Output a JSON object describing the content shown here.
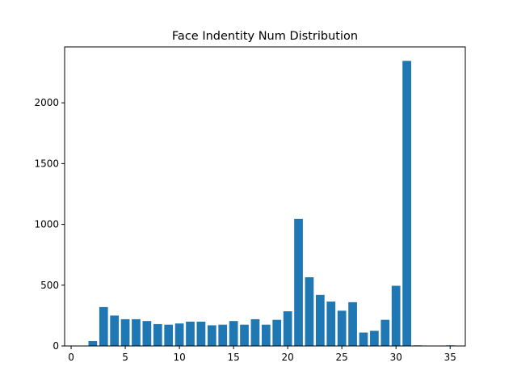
{
  "chart_data": {
    "type": "bar",
    "title": "Face Indentity Num Distribution",
    "xlabel": "",
    "ylabel": "",
    "xlim": [
      -0.6,
      36.4
    ],
    "ylim": [
      0,
      2460
    ],
    "xticks": [
      0,
      5,
      10,
      15,
      20,
      25,
      30,
      35
    ],
    "yticks": [
      0,
      500,
      1000,
      1500,
      2000
    ],
    "bar_width": 0.8,
    "color": "#1f77b4",
    "grid": false,
    "x": [
      1,
      2,
      3,
      4,
      5,
      6,
      7,
      8,
      9,
      10,
      11,
      12,
      13,
      14,
      15,
      16,
      17,
      18,
      19,
      20,
      21,
      22,
      23,
      24,
      25,
      26,
      27,
      28,
      29,
      30,
      31,
      32,
      33,
      34,
      35
    ],
    "values": [
      0,
      40,
      320,
      250,
      220,
      220,
      205,
      180,
      175,
      185,
      200,
      200,
      170,
      175,
      205,
      175,
      220,
      175,
      215,
      285,
      1045,
      565,
      420,
      365,
      290,
      360,
      110,
      125,
      215,
      495,
      2345,
      5,
      0,
      0,
      5
    ]
  }
}
